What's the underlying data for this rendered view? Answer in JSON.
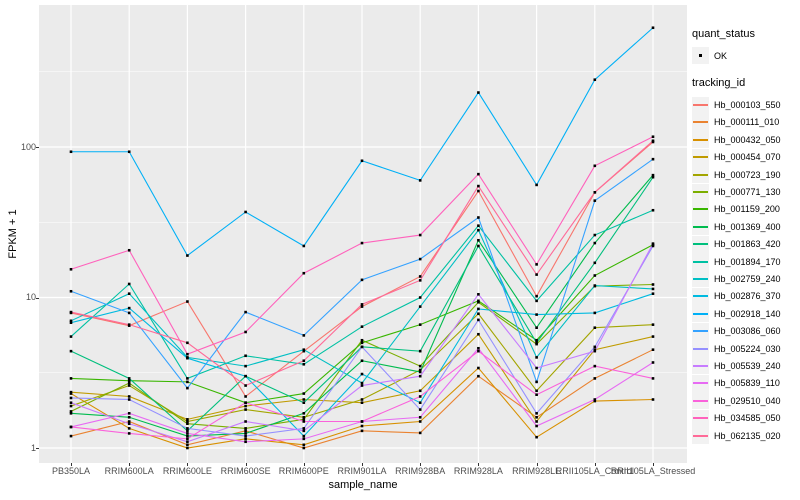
{
  "figure": {
    "x_axis_title": "sample_name",
    "y_axis_title": "FPKM + 1"
  },
  "legend": {
    "quant_status": {
      "title": "quant_status",
      "items": [
        {
          "label": "OK",
          "marker": "small-black-square-point"
        }
      ]
    },
    "tracking_id": {
      "title": "tracking_id"
    }
  },
  "colors": {
    "panel_background": "#EBEBEB",
    "gridline": "#FFFFFF",
    "axis_text": "#4D4D4D",
    "tick_mark": "#333333",
    "legend_key_background": "#F2F2F2",
    "point": "#000000"
  },
  "chart_data": {
    "type": "line",
    "title": "",
    "xlabel": "sample_name",
    "ylabel": "FPKM + 1",
    "y_scale": "log10",
    "y_ticks": [
      1,
      10,
      100
    ],
    "y_range": [
      0.85,
      900
    ],
    "grid": true,
    "legend_position": "right",
    "marker": "black square at every data point",
    "categories": [
      "PB350LA",
      "RRIM600LA",
      "RRIM600LE",
      "RRIM600SE",
      "RRIM600PE",
      "RRIM901LA",
      "RRIM928BA",
      "RRIM928LA",
      "RRIM928LE",
      "RRII105LA_Control",
      "RRII105LA_Stressed"
    ],
    "series": [
      {
        "name": "Hb_000103_550",
        "color": "#F8766D",
        "values": [
          7.9,
          6.5,
          9.4,
          2.2,
          4.4,
          8.7,
          13.8,
          51,
          10.2,
          50,
          108
        ]
      },
      {
        "name": "Hb_000111_010",
        "color": "#EA8331",
        "values": [
          1.2,
          1.5,
          1.05,
          1.3,
          1.0,
          1.3,
          1.26,
          3.0,
          1.6,
          2.9,
          4.5
        ]
      },
      {
        "name": "Hb_000432_050",
        "color": "#D89000",
        "values": [
          2.3,
          1.35,
          1.0,
          1.15,
          1.05,
          1.4,
          1.5,
          3.4,
          1.18,
          2.05,
          2.1
        ]
      },
      {
        "name": "Hb_000454_070",
        "color": "#C09B00",
        "values": [
          2.35,
          2.2,
          1.55,
          1.9,
          2.1,
          2.0,
          2.4,
          5.7,
          1.5,
          4.5,
          5.5
        ]
      },
      {
        "name": "Hb_000723_190",
        "color": "#A3A500",
        "values": [
          1.9,
          2.6,
          1.5,
          1.8,
          1.6,
          2.1,
          3.3,
          7.8,
          2.4,
          6.3,
          6.6
        ]
      },
      {
        "name": "Hb_000771_130",
        "color": "#7CAE00",
        "values": [
          1.75,
          2.7,
          1.45,
          1.35,
          1.55,
          5.2,
          3.5,
          9.3,
          4.9,
          11.9,
          12.2
        ]
      },
      {
        "name": "Hb_001159_200",
        "color": "#39B600",
        "values": [
          2.9,
          2.8,
          2.75,
          2.0,
          2.3,
          5.0,
          6.6,
          9.5,
          5.2,
          14,
          22.4
        ]
      },
      {
        "name": "Hb_001369_400",
        "color": "#00BB4E",
        "values": [
          1.7,
          1.6,
          1.2,
          1.25,
          1.7,
          3.8,
          3.2,
          24,
          6.3,
          23,
          65
        ]
      },
      {
        "name": "Hb_001863_420",
        "color": "#00BF7D",
        "values": [
          4.4,
          2.9,
          1.3,
          3.0,
          2.0,
          4.7,
          4.4,
          22,
          5.0,
          17,
          63
        ]
      },
      {
        "name": "Hb_001894_170",
        "color": "#00C1A3",
        "values": [
          5.5,
          12.3,
          2.9,
          4.1,
          3.6,
          6.4,
          10.0,
          30,
          9.5,
          26,
          38
        ]
      },
      {
        "name": "Hb_002759_240",
        "color": "#00BFC4",
        "values": [
          7.0,
          10.6,
          4.0,
          3.5,
          4.5,
          2.7,
          8.7,
          28,
          4.0,
          12,
          11.4
        ]
      },
      {
        "name": "Hb_002876_370",
        "color": "#00BAE0",
        "values": [
          6.8,
          8.5,
          3.95,
          3.0,
          1.2,
          3.1,
          2.0,
          8.4,
          7.7,
          7.9,
          10.6
        ]
      },
      {
        "name": "Hb_002918_140",
        "color": "#00B0F6",
        "values": [
          93,
          93,
          19,
          37,
          22,
          81,
          60,
          230,
          56,
          280,
          620
        ]
      },
      {
        "name": "Hb_003086_060",
        "color": "#35A2FF",
        "values": [
          11,
          7.9,
          2.5,
          8.0,
          5.6,
          13.1,
          18,
          34,
          2.75,
          44,
          83
        ]
      },
      {
        "name": "Hb_005224_030",
        "color": "#9590FF",
        "values": [
          2.15,
          2.1,
          1.35,
          1.2,
          1.35,
          4.7,
          1.8,
          7.1,
          1.7,
          4.7,
          22
        ]
      },
      {
        "name": "Hb_005539_240",
        "color": "#C77CFF",
        "values": [
          2.0,
          1.45,
          1.1,
          1.5,
          1.3,
          2.6,
          3.0,
          10.5,
          3.4,
          4.4,
          22.8
        ]
      },
      {
        "name": "Hb_005839_110",
        "color": "#E76BF3",
        "values": [
          1.38,
          1.7,
          1.25,
          1.1,
          1.15,
          1.5,
          1.6,
          4.6,
          1.4,
          2.1,
          3.7
        ]
      },
      {
        "name": "Hb_029510_040",
        "color": "#FA62DB",
        "values": [
          1.38,
          1.25,
          1.15,
          2.0,
          1.5,
          1.5,
          2.2,
          4.4,
          2.26,
          3.5,
          2.9
        ]
      },
      {
        "name": "Hb_034585_050",
        "color": "#FF62BC",
        "values": [
          15.4,
          20.6,
          4.2,
          5.9,
          14.5,
          23,
          26,
          66,
          16.6,
          75,
          117
        ]
      },
      {
        "name": "Hb_062135_020",
        "color": "#FF6A98",
        "values": [
          8.0,
          6.6,
          5.0,
          2.6,
          3.8,
          9.0,
          13.0,
          55,
          14.2,
          50,
          110
        ]
      }
    ]
  }
}
